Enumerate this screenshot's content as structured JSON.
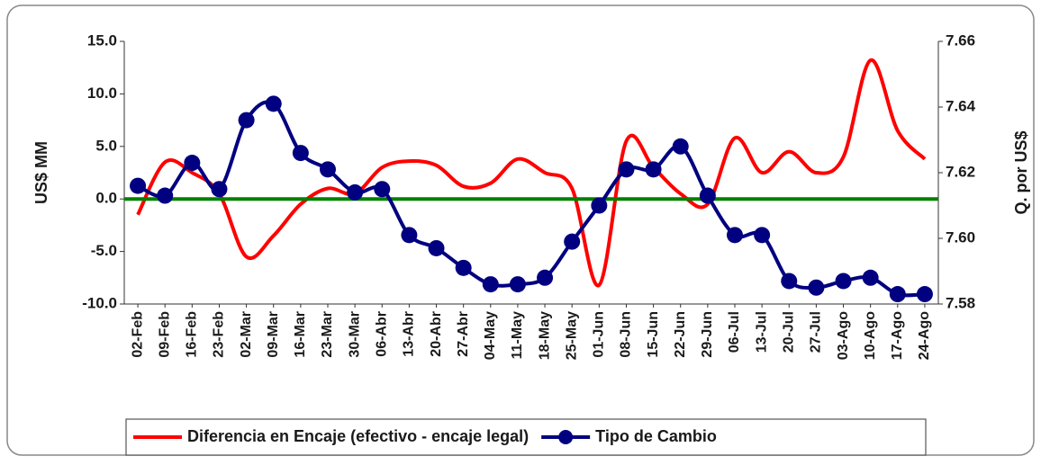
{
  "chart_data": {
    "type": "line",
    "y_label": "US$ MM",
    "y2_label": "Q. por US$",
    "categories": [
      "02-Feb",
      "09-Feb",
      "16-Feb",
      "23-Feb",
      "02-Mar",
      "09-Mar",
      "16-Mar",
      "23-Mar",
      "30-Mar",
      "06-Abr",
      "13-Abr",
      "20-Abr",
      "27-Abr",
      "04-May",
      "11-May",
      "18-May",
      "25-May",
      "01-Jun",
      "08-Jun",
      "15-Jun",
      "22-Jun",
      "29-Jun",
      "06-Jul",
      "13-Jul",
      "20-Jul",
      "27-Jul",
      "03-Ago",
      "10-Ago",
      "17-Ago",
      "24-Ago"
    ],
    "series": [
      {
        "name": "Diferencia en Encaje (efectivo - encaje legal)",
        "color": "#ff0000",
        "values": [
          -1.5,
          3.5,
          2.5,
          0.5,
          -5.5,
          -3.5,
          -0.5,
          1.0,
          0.5,
          3.0,
          3.6,
          3.2,
          1.2,
          1.5,
          3.8,
          2.5,
          1.0,
          -8.2,
          5.5,
          3.0,
          0.5,
          -0.5,
          5.8,
          2.5,
          4.5,
          2.5,
          4.0,
          13.2,
          6.5,
          3.8
        ]
      },
      {
        "name": "Tipo de Cambio",
        "color": "#000080",
        "axis": "y2",
        "marker": true,
        "values": [
          7.616,
          7.613,
          7.623,
          7.615,
          7.636,
          7.641,
          7.626,
          7.621,
          7.614,
          7.615,
          7.601,
          7.597,
          7.591,
          7.586,
          7.586,
          7.588,
          7.599,
          7.61,
          7.621,
          7.621,
          7.628,
          7.613,
          7.601,
          7.601,
          7.587,
          7.585,
          7.587,
          7.588,
          7.583,
          7.583
        ]
      }
    ],
    "hline": {
      "value": 0,
      "color": "#008000"
    },
    "ylim": [
      -10,
      15
    ],
    "yticks": [
      {
        "value": -10,
        "label": "-10.0"
      },
      {
        "value": -5,
        "label": "-5.0"
      },
      {
        "value": 0,
        "label": "0.0"
      },
      {
        "value": 5,
        "label": "5.0"
      },
      {
        "value": 10,
        "label": "10.0"
      },
      {
        "value": 15,
        "label": "15.0"
      }
    ],
    "y2lim": [
      7.58,
      7.66
    ],
    "y2ticks": [
      7.58,
      {
        "value": 7.6,
        "label": "7.60"
      },
      7.62,
      7.64,
      7.66
    ],
    "legend": "bottom"
  }
}
